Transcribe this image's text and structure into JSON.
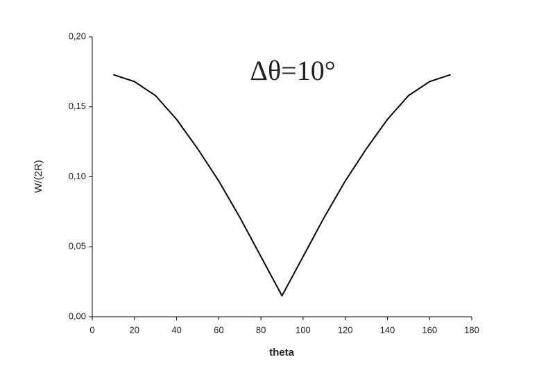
{
  "chart_data": {
    "type": "line",
    "annotation": "Δθ=10°",
    "x_label": "theta",
    "y_label": "W/(2R)",
    "x": [
      10,
      20,
      30,
      40,
      50,
      60,
      70,
      80,
      90,
      100,
      110,
      120,
      130,
      140,
      150,
      160,
      170
    ],
    "values": [
      0.173,
      0.168,
      0.158,
      0.141,
      0.12,
      0.097,
      0.071,
      0.043,
      0.015,
      0.043,
      0.071,
      0.097,
      0.12,
      0.141,
      0.158,
      0.168,
      0.173
    ],
    "color": "#000000",
    "xlim": [
      0,
      180
    ],
    "ylim": [
      0,
      0.2
    ],
    "xticks": [
      0,
      20,
      40,
      60,
      80,
      100,
      120,
      140,
      160,
      180
    ],
    "yticks": [
      {
        "value": 0,
        "label": "0,00"
      },
      {
        "value": 0.05,
        "label": "0,05"
      },
      {
        "value": 0.1,
        "label": "0,10"
      },
      {
        "value": 0.15,
        "label": "0,15"
      },
      {
        "value": 0.2,
        "label": "0,20"
      }
    ],
    "grid": false
  }
}
